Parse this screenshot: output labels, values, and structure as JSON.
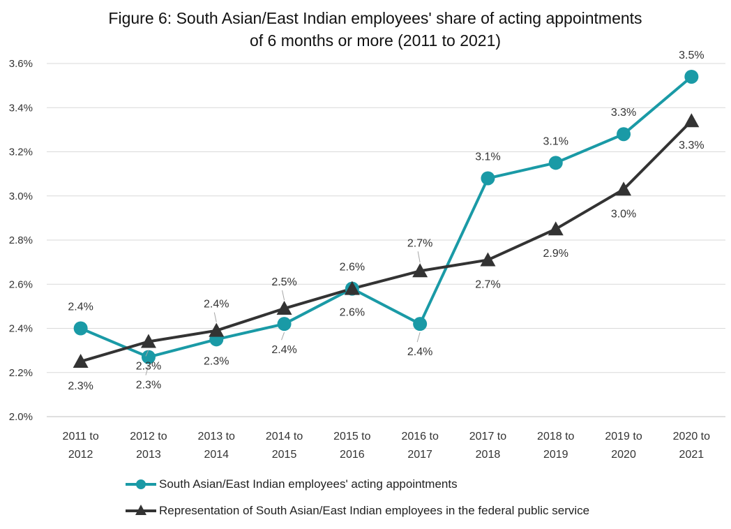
{
  "chart_data": {
    "type": "line",
    "title_line1": "Figure 6: South Asian/East Indian employees' share of acting appointments",
    "title_line2": "of 6 months or more (2011 to 2021)",
    "categories": [
      [
        "2011 to",
        "2012"
      ],
      [
        "2012 to",
        "2013"
      ],
      [
        "2013 to",
        "2014"
      ],
      [
        "2014 to",
        "2015"
      ],
      [
        "2015 to",
        "2016"
      ],
      [
        "2016 to",
        "2017"
      ],
      [
        "2017 to",
        "2018"
      ],
      [
        "2018 to",
        "2019"
      ],
      [
        "2019 to",
        "2020"
      ],
      [
        "2020 to",
        "2021"
      ]
    ],
    "ylim": [
      2.0,
      3.6
    ],
    "yticks": [
      2.0,
      2.2,
      2.4,
      2.6,
      2.8,
      3.0,
      3.2,
      3.4,
      3.6
    ],
    "ytick_labels": [
      "2.0%",
      "2.2%",
      "2.4%",
      "2.6%",
      "2.8%",
      "3.0%",
      "3.2%",
      "3.4%",
      "3.6%"
    ],
    "grid": true,
    "legend_position": "bottom",
    "series": [
      {
        "name": "South Asian/East Indian employees' acting appointments",
        "marker": "circle",
        "color": "#1a9aa6",
        "values": [
          2.4,
          2.27,
          2.35,
          2.42,
          2.58,
          2.42,
          3.08,
          3.15,
          3.28,
          3.54
        ],
        "labels": [
          "2.4%",
          "2.3%",
          "2.3%",
          "2.4%",
          "2.6%",
          "2.4%",
          "3.1%",
          "3.1%",
          "3.3%",
          "3.5%"
        ]
      },
      {
        "name": "Representation of South Asian/East Indian employees in the federal public service",
        "marker": "triangle",
        "color": "#333333",
        "values": [
          2.25,
          2.34,
          2.39,
          2.49,
          2.58,
          2.66,
          2.71,
          2.85,
          3.03,
          3.34
        ],
        "labels": [
          "2.3%",
          "2.3%",
          "2.4%",
          "2.5%",
          "2.6%",
          "2.7%",
          "2.7%",
          "2.9%",
          "3.0%",
          "3.3%"
        ]
      }
    ]
  }
}
